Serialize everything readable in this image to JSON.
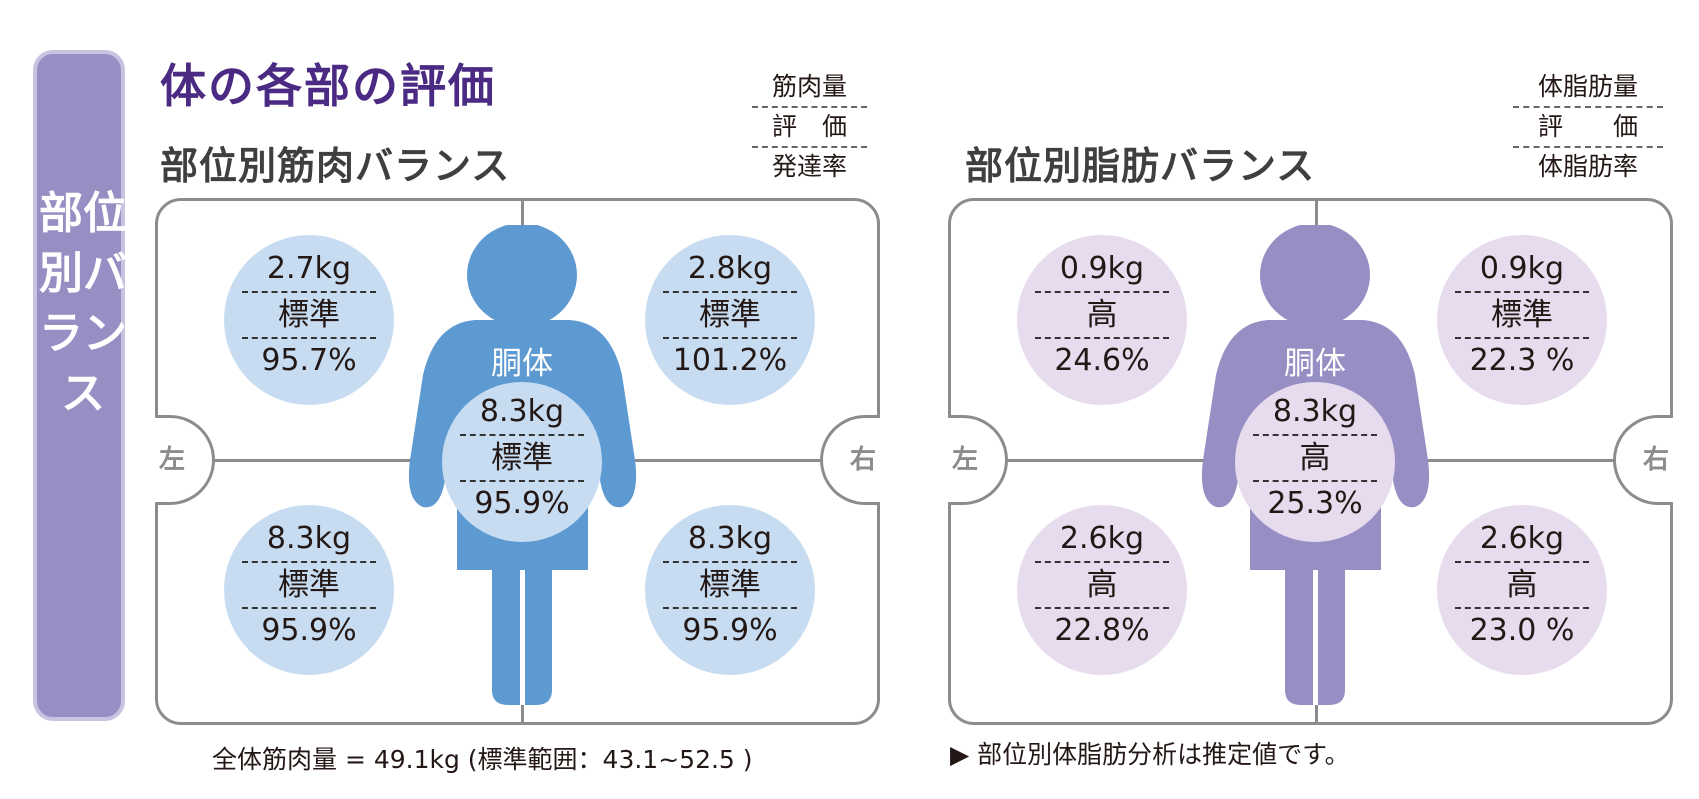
{
  "side_tab": "部位別バランス",
  "main_title": "体の各部の評価",
  "muscle": {
    "title": "部位別筋肉バランス",
    "legend": [
      "筋肉量",
      "評　価",
      "発達率"
    ],
    "left_label": "左",
    "right_label": "右",
    "torso_label": "胴体",
    "parts": {
      "left_arm": {
        "mass": "2.7kg",
        "eval": "標準",
        "rate": "95.7%"
      },
      "right_arm": {
        "mass": "2.8kg",
        "eval": "標準",
        "rate": "101.2%"
      },
      "trunk": {
        "mass": "8.3kg",
        "eval": "標準",
        "rate": "95.9%"
      },
      "left_leg": {
        "mass": "8.3kg",
        "eval": "標準",
        "rate": "95.9%"
      },
      "right_leg": {
        "mass": "8.3kg",
        "eval": "標準",
        "rate": "95.9%"
      }
    },
    "footer": "全体筋肉量 = 49.1kg (標準範囲：43.1~52.5 )"
  },
  "fat": {
    "title": "部位別脂肪バランス",
    "legend": [
      "体脂肪量",
      "評　　価",
      "体脂肪率"
    ],
    "left_label": "左",
    "right_label": "右",
    "torso_label": "胴体",
    "parts": {
      "left_arm": {
        "mass": "0.9kg",
        "eval": "高",
        "rate": "24.6%"
      },
      "right_arm": {
        "mass": "0.9kg",
        "eval": "標準",
        "rate": "22.3 %"
      },
      "trunk": {
        "mass": "8.3kg",
        "eval": "高",
        "rate": "25.3%"
      },
      "left_leg": {
        "mass": "2.6kg",
        "eval": "高",
        "rate": "22.8%"
      },
      "right_leg": {
        "mass": "2.6kg",
        "eval": "高",
        "rate": "23.0 %"
      }
    },
    "footer": "▶ 部位別体脂肪分析は推定値です。"
  },
  "colors": {
    "muscle_figure": "#5e9ad2",
    "muscle_circle": "#c7dcf1",
    "fat_figure": "#978fc4",
    "fat_circle": "#e6dcee",
    "title": "#4b2a83"
  }
}
